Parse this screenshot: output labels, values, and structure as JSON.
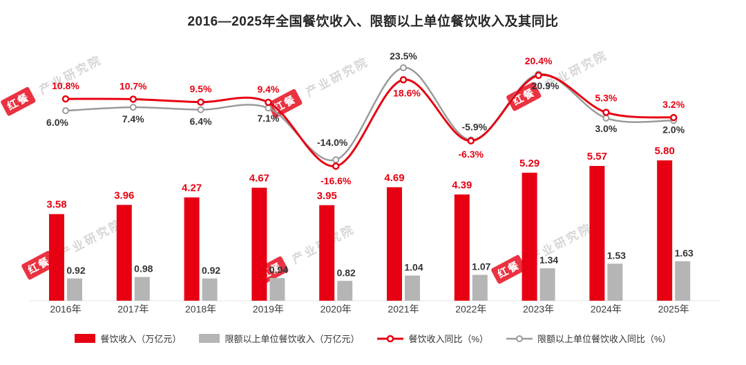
{
  "title": "2016—2025年全国餐饮收入、限额以上单位餐饮收入及其同比",
  "colors": {
    "red": "#e60012",
    "grayBar": "#b5b5b5",
    "grayLine": "#9a9a9a",
    "text": "#333333"
  },
  "watermark": {
    "badge": "红餐",
    "text": "产业研究院"
  },
  "legend": [
    {
      "label": "餐饮收入（万亿元）",
      "type": "bar",
      "color": "#e60012"
    },
    {
      "label": "限额以上单位餐饮收入（万亿元）",
      "type": "bar",
      "color": "#b5b5b5"
    },
    {
      "label": "餐饮收入同比（%）",
      "type": "line",
      "color": "#e60012"
    },
    {
      "label": "限额以上单位餐饮收入同比（%）",
      "type": "line",
      "color": "#9a9a9a"
    }
  ],
  "chart_data": {
    "type": "bar+line combo",
    "title": "2016—2025年全国餐饮收入、限额以上单位餐饮收入及其同比",
    "categories": [
      "2016年",
      "2017年",
      "2018年",
      "2019年",
      "2020年",
      "2021年",
      "2022年",
      "2023年",
      "2024年",
      "2025年"
    ],
    "series": [
      {
        "name": "餐饮收入（万亿元）",
        "type": "bar",
        "values": [
          3.58,
          3.96,
          4.27,
          4.67,
          3.95,
          4.69,
          4.39,
          5.29,
          5.57,
          5.8
        ]
      },
      {
        "name": "限额以上单位餐饮收入（万亿元）",
        "type": "bar",
        "values": [
          0.92,
          0.98,
          0.92,
          0.94,
          0.82,
          1.04,
          1.07,
          1.34,
          1.53,
          1.63
        ]
      },
      {
        "name": "餐饮收入同比（%）",
        "type": "line",
        "values": [
          10.8,
          10.7,
          9.5,
          9.4,
          -16.6,
          18.6,
          -6.3,
          20.4,
          5.3,
          3.2
        ]
      },
      {
        "name": "限额以上单位餐饮收入同比（%）",
        "type": "line",
        "values": [
          6.0,
          7.4,
          6.4,
          7.1,
          -14.0,
          23.5,
          -5.9,
          20.9,
          3.0,
          2.0
        ]
      }
    ],
    "legend_position": "bottom",
    "grid": false
  }
}
